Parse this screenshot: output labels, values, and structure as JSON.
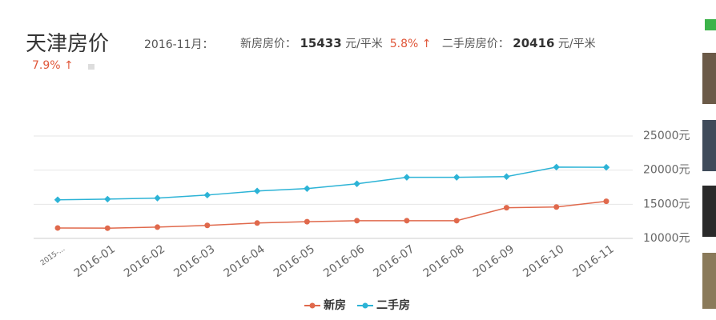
{
  "header": {
    "title": "天津房价",
    "period": "2016-11月：",
    "new_label": "新房房价：",
    "new_price": "15433",
    "new_unit": "元/平米",
    "new_change": "5.8% ↑",
    "used_label": "二手房房价：",
    "used_price": "20416",
    "used_unit": "元/平米",
    "used_change": "7.9% ↑"
  },
  "chart_data": {
    "type": "line",
    "categories": [
      "2015-...",
      "2016-01",
      "2016-02",
      "2016-03",
      "2016-04",
      "2016-05",
      "2016-06",
      "2016-07",
      "2016-08",
      "2016-09",
      "2016-10",
      "2016-11"
    ],
    "series": [
      {
        "name": "新房",
        "color": "#e0694c",
        "values": [
          11530,
          11500,
          11650,
          11900,
          12250,
          12450,
          12600,
          12600,
          12600,
          14500,
          14600,
          15433
        ]
      },
      {
        "name": "二手房",
        "color": "#2cb3d6",
        "values": [
          15650,
          15750,
          15900,
          16350,
          16950,
          17300,
          18000,
          18950,
          18950,
          19050,
          20450,
          20416
        ]
      }
    ],
    "ylim": [
      10000,
      25000
    ],
    "yticks": [
      {
        "value": 10000,
        "label": "10000元"
      },
      {
        "value": 15000,
        "label": "15000元"
      },
      {
        "value": 20000,
        "label": "20000元"
      },
      {
        "value": 25000,
        "label": "25000元"
      }
    ],
    "grid": true
  }
}
